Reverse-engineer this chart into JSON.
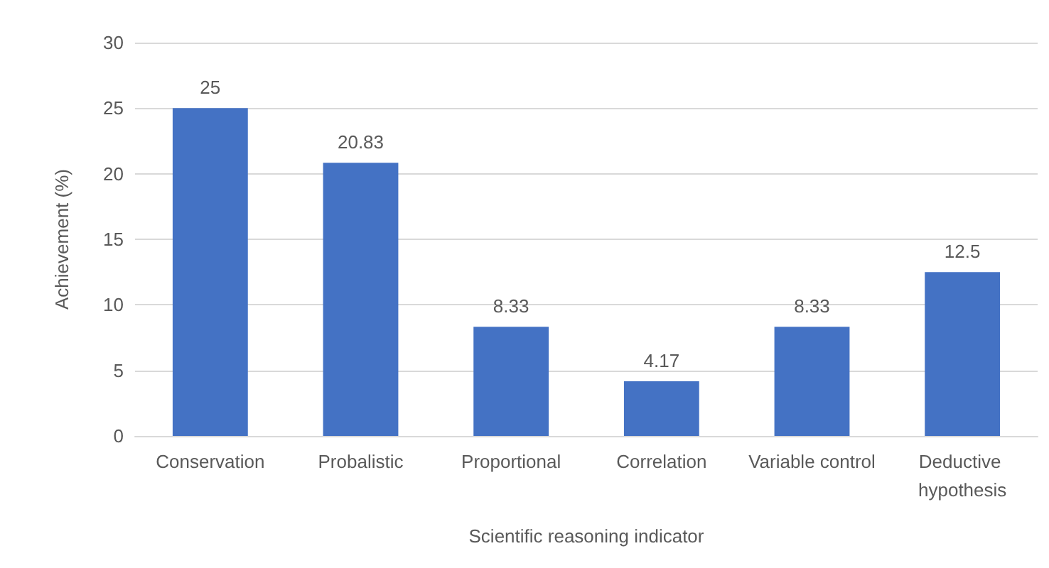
{
  "chart_data": {
    "type": "bar",
    "categories": [
      "Conservation",
      "Probalistic",
      "Proportional",
      "Correlation",
      "Variable control",
      "Deductive hypothesis"
    ],
    "values": [
      25,
      20.83,
      8.33,
      4.17,
      8.33,
      12.5
    ],
    "color": "#4472c4",
    "xlabel": "Scientific reasoning indicator",
    "ylabel": "Achievement (%)",
    "ylim": [
      0,
      30
    ],
    "yticks": [
      0,
      5,
      10,
      15,
      20,
      25,
      30
    ],
    "grid": true,
    "data_labels": true
  }
}
